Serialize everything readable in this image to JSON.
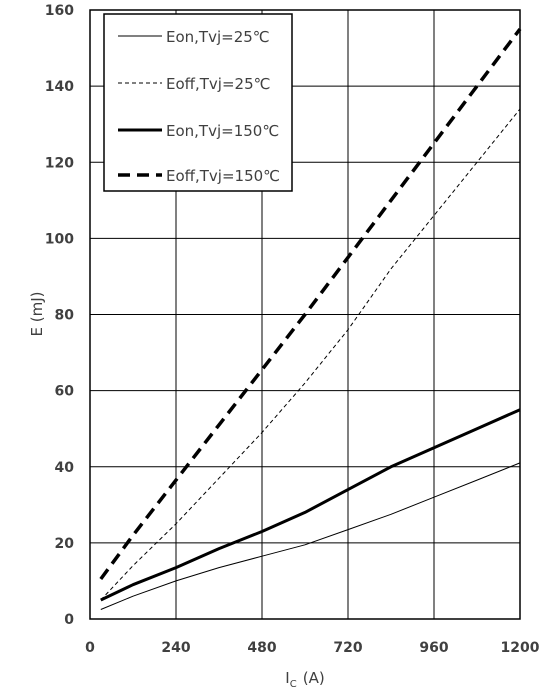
{
  "chart_data": {
    "type": "line",
    "title": "",
    "xlabel": "I",
    "xlabel_sub": "C",
    "xlabel_unit": "(A)",
    "ylabel": "E (mJ)",
    "xlim": [
      0,
      1200
    ],
    "ylim": [
      0,
      160
    ],
    "xticks": [
      0,
      240,
      480,
      720,
      960,
      1200
    ],
    "yticks": [
      0,
      20,
      40,
      60,
      80,
      100,
      120,
      140,
      160
    ],
    "xtick_labels": [
      "0",
      "240",
      "480",
      "720",
      "960",
      "1200"
    ],
    "ytick_labels": [
      "0",
      "20",
      "40",
      "60",
      "80",
      "100",
      "120",
      "140",
      "160"
    ],
    "grid": true,
    "legend_position": "top-left",
    "series": [
      {
        "name": "Eon,Tvj=25℃",
        "style": "thin-solid",
        "x": [
          30,
          120,
          240,
          360,
          480,
          600,
          720,
          840,
          960,
          1080,
          1200
        ],
        "y": [
          2.5,
          6,
          10,
          13.5,
          16.5,
          19.5,
          23.5,
          27.5,
          32,
          36.5,
          41
        ]
      },
      {
        "name": "Eoff,Tvj=25℃",
        "style": "thin-dashed",
        "x": [
          30,
          120,
          240,
          360,
          480,
          600,
          720,
          840,
          960,
          1080,
          1200
        ],
        "y": [
          5,
          14,
          25,
          37,
          49,
          62,
          76,
          92,
          106,
          120,
          134
        ]
      },
      {
        "name": "Eon,Tvj=150℃",
        "style": "thick-solid",
        "x": [
          30,
          120,
          240,
          360,
          480,
          600,
          720,
          840,
          960,
          1080,
          1200
        ],
        "y": [
          5,
          9,
          13.5,
          18.5,
          23,
          28,
          34,
          40,
          45,
          50,
          55
        ]
      },
      {
        "name": "Eoff,Tvj=150℃",
        "style": "thick-dashed",
        "x": [
          30,
          120,
          240,
          360,
          480,
          600,
          720,
          840,
          960,
          1080,
          1200
        ],
        "y": [
          10.5,
          22,
          36.5,
          51,
          65.5,
          80,
          95,
          110,
          125,
          140,
          155
        ]
      }
    ]
  }
}
